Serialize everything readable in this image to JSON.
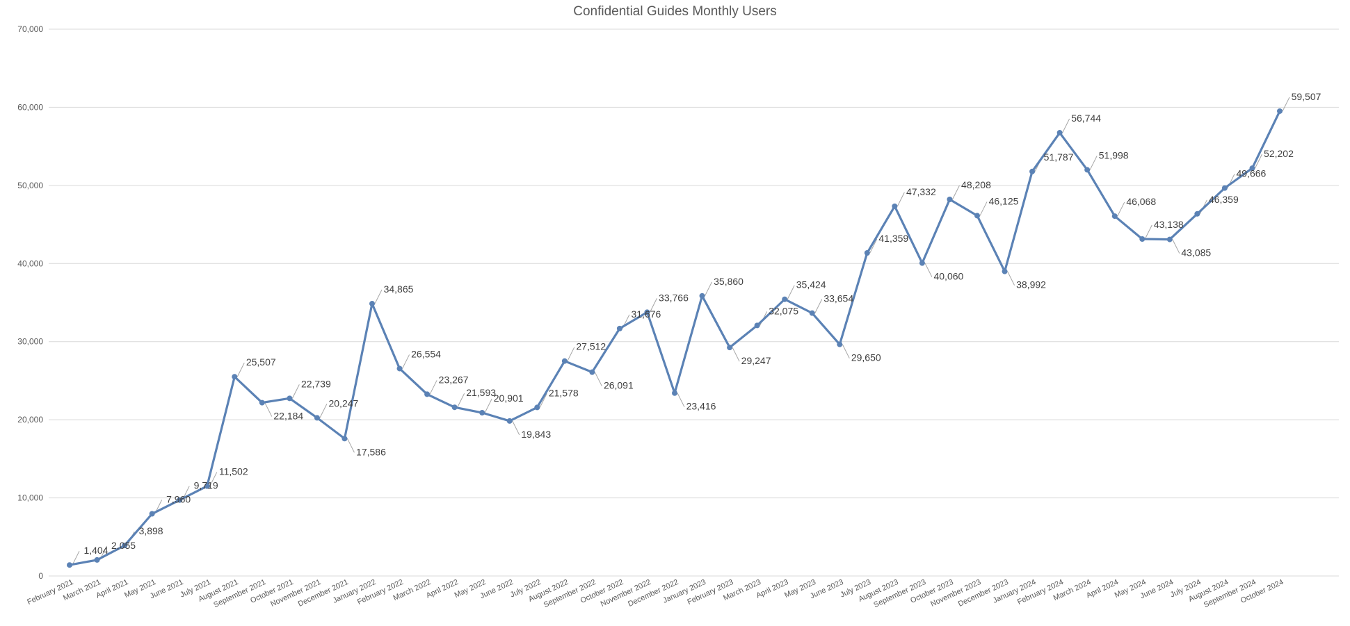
{
  "chart_data": {
    "type": "line",
    "title": "Confidential Guides Monthly Users",
    "xlabel": "",
    "ylabel": "",
    "ylim": [
      0,
      70000
    ],
    "y_ticks": [
      "0",
      "10,000",
      "20,000",
      "30,000",
      "40,000",
      "50,000",
      "60,000",
      "70,000"
    ],
    "y_tick_values": [
      0,
      10000,
      20000,
      30000,
      40000,
      50000,
      60000,
      70000
    ],
    "grid": true,
    "legend": "none",
    "line_color": "#5b82b5",
    "categories": [
      "February 2021",
      "March 2021",
      "April 2021",
      "May 2021",
      "June 2021",
      "July 2021",
      "August 2021",
      "September 2021",
      "October 2021",
      "November 2021",
      "December 2021",
      "January 2022",
      "February 2022",
      "March 2022",
      "April 2022",
      "May 2022",
      "June 2022",
      "July 2022",
      "August 2022",
      "September 2022",
      "October 2022",
      "November 2022",
      "December 2022",
      "January 2023",
      "February 2023",
      "March 2023",
      "April 2023",
      "May 2023",
      "June 2023",
      "July 2023",
      "August 2023",
      "September 2023",
      "October 2023",
      "November 2023",
      "December 2023",
      "January 2024",
      "February 2024",
      "March 2024",
      "April 2024",
      "May 2024",
      "June 2024",
      "July 2024",
      "August 2024",
      "September 2024",
      "October 2024"
    ],
    "values": [
      1404,
      2055,
      3898,
      7960,
      9719,
      11502,
      25507,
      22184,
      22739,
      20247,
      17586,
      34865,
      26554,
      23267,
      21593,
      20901,
      19843,
      21578,
      27512,
      26091,
      31676,
      33766,
      23416,
      35860,
      29247,
      32075,
      35424,
      33654,
      29650,
      41359,
      47332,
      40060,
      48208,
      46125,
      38992,
      51787,
      56744,
      51998,
      46068,
      43138,
      43085,
      46359,
      49666,
      52202,
      59507
    ],
    "data_labels": [
      "1,404",
      "2,055",
      "3,898",
      "7,960",
      "9,719",
      "11,502",
      "25,507",
      "22,184",
      "22,739",
      "20,247",
      "17,586",
      "34,865",
      "26,554",
      "23,267",
      "21,593",
      "20,901",
      "19,843",
      "21,578",
      "27,512",
      "26,091",
      "31,676",
      "33,766",
      "23,416",
      "35,860",
      "29,247",
      "32,075",
      "35,424",
      "33,654",
      "29,650",
      "41,359",
      "47,332",
      "40,060",
      "48,208",
      "46,125",
      "38,992",
      "51,787",
      "56,744",
      "51,998",
      "46,068",
      "43,138",
      "43,085",
      "46,359",
      "49,666",
      "52,202",
      "59,507"
    ]
  }
}
